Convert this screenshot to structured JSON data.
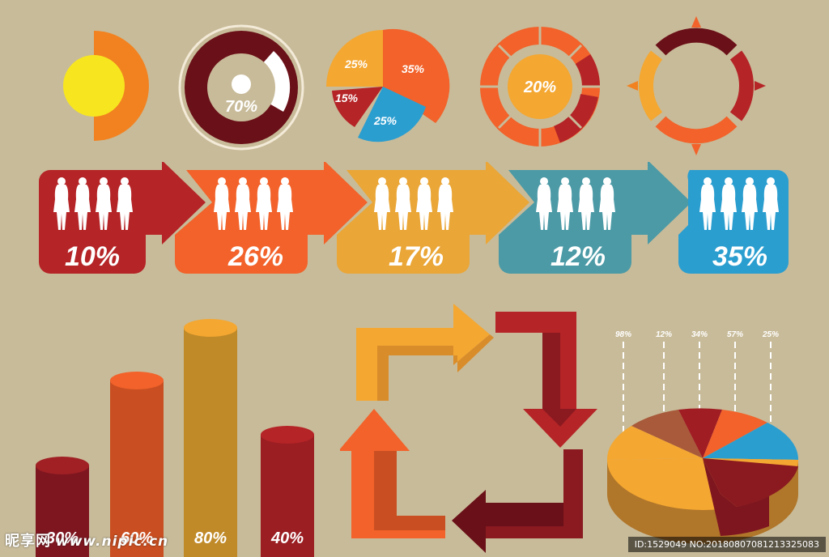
{
  "colors": {
    "background": "#c8bb99",
    "yellow": "#f7e61f",
    "orange": "#f28220",
    "dark_orange": "#f2622a",
    "amber": "#f4a731",
    "maroon": "#6a1018",
    "red": "#b52427",
    "teal": "#4a9aa5",
    "blue": "#2b9ed0",
    "gold": "#c08a28"
  },
  "donuts": {
    "ring_percent": "70%",
    "pie_labels": [
      "25%",
      "35%",
      "15%",
      "25%"
    ],
    "center_percent": "20%"
  },
  "arrow_steps": [
    {
      "percent": "10%",
      "color": "#b52427"
    },
    {
      "percent": "26%",
      "color": "#f2622a"
    },
    {
      "percent": "17%",
      "color": "#eaa637"
    },
    {
      "percent": "12%",
      "color": "#4b9aa6"
    },
    {
      "percent": "35%",
      "color": "#2b9ed0"
    }
  ],
  "cylinders": [
    {
      "label": "30%",
      "color": "#7e1620"
    },
    {
      "label": "60%",
      "color": "#d85a24"
    },
    {
      "label": "80%",
      "color": "#c08a28"
    },
    {
      "label": "40%",
      "color": "#a02024"
    }
  ],
  "pie3d_labels": [
    "98%",
    "12%",
    "34%",
    "57%",
    "25%"
  ],
  "watermark": {
    "left": "昵享网",
    "site": "www.nipic.cn",
    "right": "ID:1529049 NO:20180807081213325083"
  }
}
